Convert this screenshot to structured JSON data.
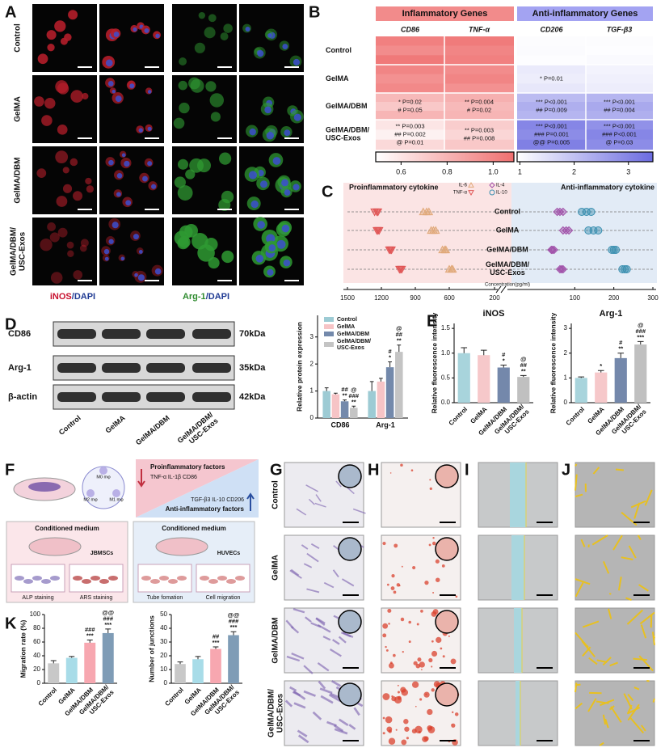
{
  "panel_labels": [
    "A",
    "B",
    "C",
    "D",
    "E",
    "F",
    "G",
    "H",
    "I",
    "J",
    "K"
  ],
  "groups": [
    "Control",
    "GelMA",
    "GelMA/DBM",
    "GelMA/DBM/\nUSC-Exos"
  ],
  "fluorescence": {
    "stains": [
      [
        {
          "text": "iNOS",
          "color": "#c8102e"
        },
        {
          "text": "/DAPI",
          "color": "#1f3a93"
        }
      ],
      [
        {
          "text": "Arg-1",
          "color": "#2e8b2e"
        },
        {
          "text": "/DAPI",
          "color": "#1f3a93"
        }
      ]
    ]
  },
  "blot": {
    "proteins": [
      "CD86",
      "Arg-1",
      "β-actin"
    ],
    "sizes": [
      "70kDa",
      "35kDa",
      "42kDa"
    ],
    "lanes": [
      "Control",
      "GelMA",
      "GelMA/DBM",
      "GelMA/DBM/\nUSC-Exos"
    ]
  },
  "schematic": {
    "macrophages": [
      "M0 mφ",
      "M2 mφ",
      "M1 mφ"
    ],
    "pro_title": "Proinflammatory factors",
    "pro_factors": "TNF-α IL-1β CD86",
    "anti_factors": "TGF-β3 IL-10 CD206",
    "anti_title": "Anti-inflammatory factors",
    "medium": [
      "Conditioned medium",
      "Conditioned medium"
    ],
    "cells": [
      "JBMSCs",
      "HUVECs"
    ],
    "assays": [
      "ALP staining",
      "ARS staining",
      "Tube fomation",
      "Cell migration"
    ]
  },
  "chart_data": [
    {
      "type": "heatmap",
      "rows": [
        "Control",
        "GelMA",
        "GelMA/DBM",
        "GelMA/DBM/\nUSC-Exos"
      ],
      "column_groups": [
        {
          "title": "Inflammatory Genes",
          "header_color": "#f28b8b",
          "color": "#ef6f6f",
          "lim": [
            0.49,
            1.09
          ],
          "ticks": [
            0.6,
            0.8,
            {
              "value": 1,
              "label": "1.0"
            }
          ],
          "genes": [
            {
              "name": "CD86",
              "values": [
                [
                  1.02,
                  0.97,
                  1.05
                ],
                [
                  1.0,
                  0.95,
                  0.98
                ],
                [
                  0.78,
                  0.72,
                  0.8
                ],
                [
                  0.6,
                  0.55,
                  0.65
                ]
              ],
              "annotations": [
                [],
                [],
                [
                  "* P=0.02",
                  "# P=0.05"
                ],
                [
                  "** P=0.003",
                  "## P=0.002",
                  "@ P=0.01"
                ]
              ]
            },
            {
              "name": "TNF-α",
              "values": [
                [
                  1.04,
                  1.0,
                  1.02
                ],
                [
                  0.97,
                  1.0,
                  0.95
                ],
                [
                  0.82,
                  0.78,
                  0.8
                ],
                [
                  0.7,
                  0.66,
                  0.72
                ]
              ],
              "annotations": [
                [],
                [],
                [
                  "** P=0.004",
                  "# P=0.02"
                ],
                [
                  "** P=0.003",
                  "## P=0.008"
                ]
              ]
            }
          ]
        },
        {
          "title": "Anti-inflammatory Genes",
          "header_color": "#a3a3f2",
          "color": "#6b6be0",
          "lim": [
            0.95,
            3.45
          ],
          "ticks": [
            1,
            2,
            3
          ],
          "genes": [
            {
              "name": "CD206",
              "values": [
                [
                  1.0,
                  1.02,
                  0.98
                ],
                [
                  1.3,
                  1.25,
                  1.35
                ],
                [
                  2.1,
                  2.3,
                  2.2
                ],
                [
                  3.0,
                  2.9,
                  3.1
                ]
              ],
              "annotations": [
                [],
                [
                  "* P=0.01"
                ],
                [
                  "*** P<0.001",
                  "## P=0.009"
                ],
                [
                  "*** P<0.001",
                  "### P=0.001",
                  "@@ P=0.005"
                ]
              ]
            },
            {
              "name": "TGF-β3",
              "values": [
                [
                  1.0,
                  0.98,
                  1.03
                ],
                [
                  1.15,
                  1.2,
                  1.25
                ],
                [
                  2.2,
                  2.4,
                  2.3
                ],
                [
                  2.8,
                  3.0,
                  2.9
                ]
              ],
              "annotations": [
                [],
                [],
                [
                  "*** P<0.001",
                  "## P=0.004"
                ],
                [
                  "*** P<0.001",
                  "### P<0.001",
                  "@ P=0.03"
                ]
              ]
            }
          ]
        }
      ]
    },
    {
      "type": "dot",
      "titles": [
        "Proinflammatory cytokine",
        "Anti-inflammatory cytokine"
      ],
      "rows": [
        "Control",
        "GelMA",
        "GelMA/DBM",
        "GelMA/DBM/\nUSC-Exos"
      ],
      "xlabel": "Concentration(pg/ml)",
      "xlim": [
        1500,
        200
      ],
      "xticks": [
        1500,
        1200,
        900,
        600,
        200
      ],
      "x2lim": [
        0,
        300
      ],
      "x2ticks": [
        100,
        200,
        300
      ],
      "series": [
        {
          "name": "IL-6",
          "marker": "triangle-up",
          "color": "#e0a878",
          "axis": "x",
          "values": [
            [
              830,
              800,
              780
            ],
            [
              760,
              740,
              720
            ],
            [
              660,
              640,
              630
            ],
            [
              600,
              580,
              570
            ]
          ]
        },
        {
          "name": "IL-4",
          "marker": "diamond",
          "color": "#a050a8",
          "axis": "x2",
          "values": [
            [
              55,
              62,
              70
            ],
            [
              70,
              78,
              85
            ],
            [
              40,
              43,
              47
            ],
            [
              62,
              66,
              70
            ]
          ]
        },
        {
          "name": "TNF-α",
          "marker": "triangle-down",
          "color": "#e05555",
          "axis": "x",
          "values": [
            [
              1260,
              1240,
              1230
            ],
            [
              1240,
              1230,
              1220
            ],
            [
              1130,
              1120,
              1110
            ],
            [
              1040,
              1030,
              1020
            ]
          ]
        },
        {
          "name": "IL-10",
          "marker": "circle",
          "color": "#3a8fb0",
          "axis": "x2",
          "values": [
            [
              118,
              130,
              142
            ],
            [
              135,
              148,
              160
            ],
            [
              195,
              200,
              205
            ],
            [
              222,
              228,
              233
            ]
          ]
        }
      ]
    },
    {
      "type": "grouped_bar",
      "ylabel": "Relative protein expression",
      "categories": [
        "CD86",
        "Arg-1"
      ],
      "ylim": [
        0,
        3.8
      ],
      "yticks": [
        0,
        1,
        2,
        3
      ],
      "series": [
        {
          "name": "Control",
          "color": "#9dcbd4",
          "values": [
            1.0,
            1.0
          ],
          "errors": [
            0.12,
            0.35
          ],
          "annotations": [
            [],
            []
          ]
        },
        {
          "name": "GelMA",
          "color": "#f6c4c6",
          "values": [
            0.88,
            1.35
          ],
          "errors": [
            0.04,
            0.12
          ],
          "annotations": [
            [],
            []
          ]
        },
        {
          "name": "GelMA/DBM",
          "color": "#7389ab",
          "values": [
            0.62,
            1.88
          ],
          "errors": [
            0.05,
            0.2
          ],
          "annotations": [
            [
              "##",
              "**"
            ],
            [
              "#",
              "*"
            ]
          ]
        },
        {
          "name": "GelMA/DBM/\nUSC-Exos",
          "color": "#c4c4c4",
          "values": [
            0.38,
            2.45
          ],
          "errors": [
            0.06,
            0.25
          ],
          "annotations": [
            [
              "@",
              "###",
              "**"
            ],
            [
              "@",
              "##",
              "**"
            ]
          ]
        }
      ]
    },
    {
      "type": "bar",
      "title": "iNOS",
      "ylabel": "Relative fluorescence intensity",
      "categories": [
        "Control",
        "GelMA",
        "GelMA/DBM",
        "GelMA/DBM/\nUSC-Exos"
      ],
      "colors": [
        "#a8d4dc",
        "#f6c8ca",
        "#7488ab",
        "#c0c0c0"
      ],
      "values": [
        1.0,
        0.96,
        0.71,
        0.52
      ],
      "errors": [
        0.11,
        0.1,
        0.05,
        0.03
      ],
      "annotations": [
        [],
        [],
        [
          "#",
          "*"
        ],
        [
          "@",
          "##",
          "**"
        ]
      ],
      "ylim": [
        0,
        1.6
      ],
      "yticks": [
        {
          "value": 0,
          "label": "0.0"
        },
        0.5,
        {
          "value": 1,
          "label": "1.0"
        },
        1.5
      ]
    },
    {
      "type": "bar",
      "title": "Arg-1",
      "ylabel": "Relative fluorescence intensity",
      "categories": [
        "Control",
        "GelMA",
        "GelMA/DBM",
        "GelMA/DBM/\nUSC-Exos"
      ],
      "colors": [
        "#a8d4dc",
        "#f6c8ca",
        "#7488ab",
        "#c0c0c0"
      ],
      "values": [
        1.0,
        1.22,
        1.8,
        2.35
      ],
      "errors": [
        0.04,
        0.08,
        0.2,
        0.12
      ],
      "annotations": [
        [],
        [
          "*"
        ],
        [
          "#",
          "**"
        ],
        [
          "@",
          "###",
          "***"
        ]
      ],
      "ylim": [
        0,
        3.2
      ],
      "yticks": [
        0,
        1,
        2,
        3
      ]
    },
    {
      "type": "bar",
      "ylabel": "Migration rate (%)",
      "categories": [
        "Control",
        "GelMA",
        "GelMA/DBM",
        "GelMA/DBM/\nUSC-Exos"
      ],
      "colors": [
        "#c8c8c8",
        "#a8dce8",
        "#f7a7b0",
        "#7f9cb6"
      ],
      "values": [
        29,
        37,
        59,
        73
      ],
      "errors": [
        4,
        2,
        4,
        6
      ],
      "annotations": [
        [],
        [],
        [
          "###",
          "***"
        ],
        [
          "@@",
          "###",
          "***"
        ]
      ],
      "ylim": [
        0,
        100
      ],
      "yticks": [
        0,
        20,
        40,
        60,
        80,
        100
      ]
    },
    {
      "type": "bar",
      "ylabel": "Number of junctions",
      "categories": [
        "Control",
        "GelMA",
        "GelMA/DBM",
        "GelMA/DBM/\nUSC-Exos"
      ],
      "colors": [
        "#c8c8c8",
        "#a8dce8",
        "#f7a7b0",
        "#7f9cb6"
      ],
      "values": [
        14,
        17.5,
        25,
        35
      ],
      "errors": [
        1.5,
        2,
        1.5,
        2.5
      ],
      "annotations": [
        [],
        [],
        [
          "##",
          "***"
        ],
        [
          "@@",
          "###",
          "***"
        ]
      ],
      "ylim": [
        0,
        50
      ],
      "yticks": [
        0,
        10,
        20,
        30,
        40,
        50
      ]
    }
  ]
}
